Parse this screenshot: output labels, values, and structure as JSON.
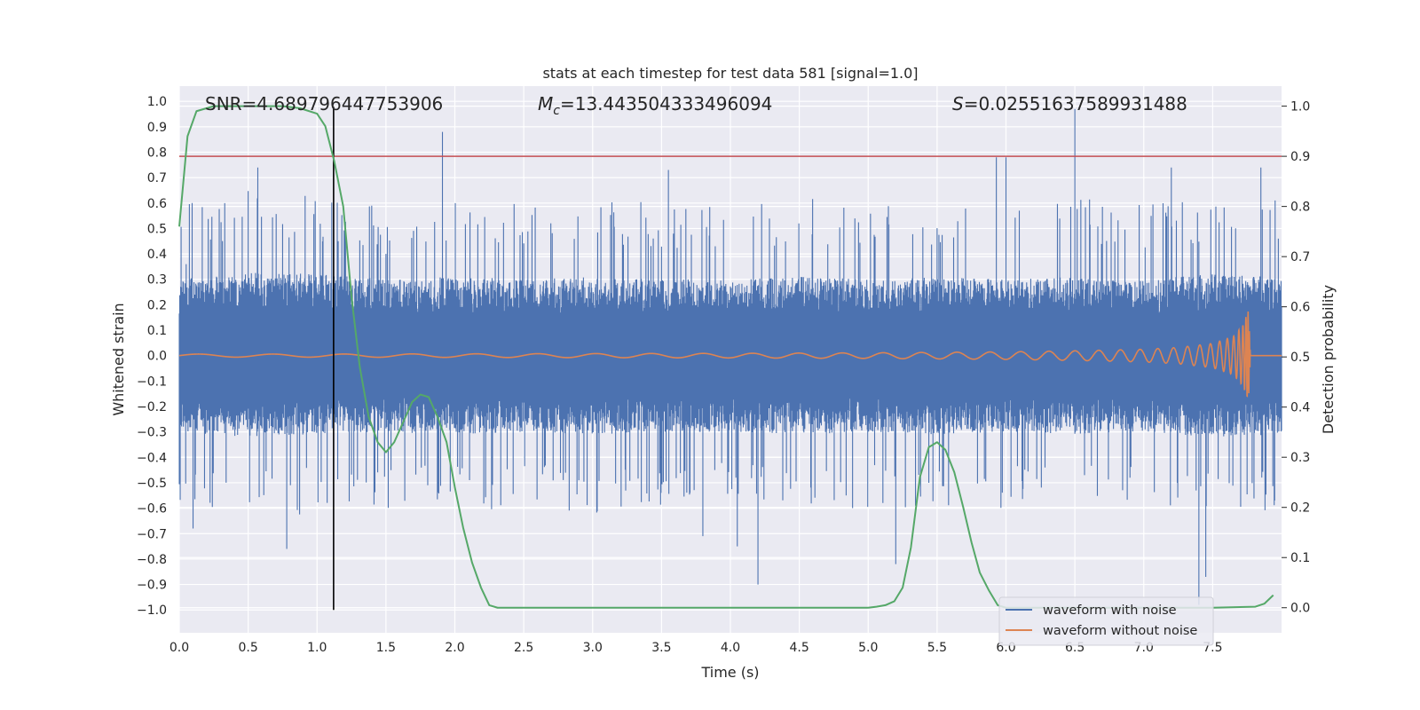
{
  "chart_data": {
    "type": "line",
    "title": "stats at each timestep for test data 581 [signal=1.0]",
    "xlabel": "Time (s)",
    "ylabel_left": "Whitened strain",
    "ylabel_right": "Detection probability",
    "xlim": [
      0.0,
      8.0
    ],
    "ylim_left": [
      -1.09,
      1.06
    ],
    "ylim_right": [
      -0.05,
      1.04
    ],
    "x_ticks": [
      0.0,
      0.5,
      1.0,
      1.5,
      2.0,
      2.5,
      3.0,
      3.5,
      4.0,
      4.5,
      5.0,
      5.5,
      6.0,
      6.5,
      7.0,
      7.5
    ],
    "x_tick_labels": [
      "0.0",
      "0.5",
      "1.0",
      "1.5",
      "2.0",
      "2.5",
      "3.0",
      "3.5",
      "4.0",
      "4.5",
      "5.0",
      "5.5",
      "6.0",
      "6.5",
      "7.0",
      "7.5"
    ],
    "y_left_ticks": [
      1.0,
      0.9,
      0.8,
      0.7,
      0.6,
      0.5,
      0.4,
      0.3,
      0.2,
      0.1,
      0.0,
      -0.1,
      -0.2,
      -0.3,
      -0.4,
      -0.5,
      -0.6,
      -0.7,
      -0.8,
      -0.9,
      -1.0
    ],
    "y_left_tick_labels": [
      "1.0",
      "0.9",
      "0.8",
      "0.7",
      "0.6",
      "0.5",
      "0.4",
      "0.3",
      "0.2",
      "0.1",
      "0.0",
      "−0.1",
      "−0.2",
      "−0.3",
      "−0.4",
      "−0.5",
      "−0.6",
      "−0.7",
      "−0.8",
      "−0.9",
      "−1.0"
    ],
    "y_right_ticks": [
      1.0,
      0.9,
      0.8,
      0.7,
      0.6,
      0.5,
      0.4,
      0.3,
      0.2,
      0.1,
      0.0
    ],
    "y_right_tick_labels": [
      "1.0",
      "0.9",
      "0.8",
      "0.7",
      "0.6",
      "0.5",
      "0.4",
      "0.3",
      "0.2",
      "0.1",
      "0.0"
    ],
    "annotations": {
      "snr": "SNR=4.689796447753906",
      "mc_symbol": "M",
      "mc_sub": "c",
      "mc_value": "=13.443504333496094",
      "s_symbol": "S",
      "s_value": "=0.02551637589931488"
    },
    "threshold_probability": 0.9,
    "marker_time": 1.12,
    "legend": {
      "position": "lower right",
      "entries": [
        {
          "label": "waveform with noise",
          "color": "#4c72b0"
        },
        {
          "label": "waveform without noise",
          "color": "#dd8452"
        }
      ]
    },
    "colors": {
      "background": "#eaeaf2",
      "grid": "#ffffff",
      "noise": "#4c72b0",
      "clean": "#dd8452",
      "probability": "#55a868",
      "threshold": "#c44e52",
      "marker": "#000000"
    },
    "series": [
      {
        "name": "detection probability",
        "axis": "right",
        "x": [
          0.0,
          0.06,
          0.125,
          0.25,
          0.5,
          0.75,
          0.875,
          1.0,
          1.06,
          1.125,
          1.19,
          1.25,
          1.31,
          1.375,
          1.44,
          1.5,
          1.56,
          1.625,
          1.69,
          1.75,
          1.81,
          1.875,
          1.94,
          2.0,
          2.06,
          2.125,
          2.19,
          2.25,
          2.31,
          2.5,
          3.0,
          4.0,
          5.0,
          5.06,
          5.125,
          5.19,
          5.25,
          5.31,
          5.375,
          5.44,
          5.5,
          5.56,
          5.625,
          5.69,
          5.75,
          5.81,
          5.875,
          5.94,
          6.0,
          6.5,
          7.0,
          7.5,
          7.81,
          7.875,
          7.94
        ],
        "y": [
          0.76,
          0.94,
          0.99,
          1.0,
          1.0,
          1.0,
          0.996,
          0.985,
          0.96,
          0.89,
          0.8,
          0.62,
          0.48,
          0.38,
          0.33,
          0.31,
          0.33,
          0.37,
          0.41,
          0.425,
          0.42,
          0.38,
          0.33,
          0.24,
          0.16,
          0.09,
          0.04,
          0.005,
          0.0,
          0.0,
          0.0,
          0.0,
          0.0,
          0.002,
          0.005,
          0.013,
          0.04,
          0.12,
          0.26,
          0.32,
          0.33,
          0.315,
          0.27,
          0.2,
          0.13,
          0.07,
          0.035,
          0.005,
          0.0,
          0.0,
          0.0,
          0.0,
          0.002,
          0.008,
          0.025
        ]
      },
      {
        "name": "waveform with noise",
        "axis": "left",
        "envelope_x": [
          0.0,
          0.5,
          1.0,
          1.5,
          2.0,
          2.5,
          3.0,
          3.5,
          4.0,
          4.5,
          5.0,
          5.5,
          6.0,
          6.5,
          7.0,
          7.5,
          8.0
        ],
        "envelope_upper": [
          0.3,
          0.33,
          0.32,
          0.3,
          0.31,
          0.3,
          0.31,
          0.3,
          0.3,
          0.31,
          0.3,
          0.31,
          0.3,
          0.31,
          0.3,
          0.32,
          0.31
        ],
        "envelope_lower": [
          -0.3,
          -0.32,
          -0.31,
          -0.3,
          -0.31,
          -0.3,
          -0.31,
          -0.3,
          -0.3,
          -0.31,
          -0.3,
          -0.31,
          -0.3,
          -0.31,
          -0.3,
          -0.32,
          -0.31
        ],
        "peaks_x": [
          0.05,
          0.1,
          0.57,
          0.78,
          1.5,
          1.91,
          3.55,
          3.8,
          4.05,
          4.2,
          5.2,
          5.93,
          6.0,
          6.5,
          7.2,
          7.4,
          7.45,
          7.85,
          7.95
        ],
        "peaks_y": [
          0.36,
          -0.68,
          0.74,
          -0.76,
          0.4,
          0.88,
          0.73,
          -0.71,
          -0.75,
          -0.9,
          -0.82,
          0.78,
          0.78,
          0.97,
          0.74,
          -0.98,
          -0.87,
          0.74,
          -0.57
        ]
      },
      {
        "name": "waveform without noise",
        "axis": "left",
        "x": [
          0.0,
          1.0,
          2.0,
          3.0,
          4.0,
          5.0,
          6.0,
          6.5,
          7.0,
          7.25,
          7.5,
          7.65,
          7.72,
          7.76,
          7.775,
          8.0
        ],
        "amplitude": [
          0.006,
          0.006,
          0.007,
          0.008,
          0.009,
          0.011,
          0.015,
          0.019,
          0.025,
          0.032,
          0.048,
          0.075,
          0.12,
          0.18,
          0.0,
          0.0
        ]
      }
    ]
  }
}
